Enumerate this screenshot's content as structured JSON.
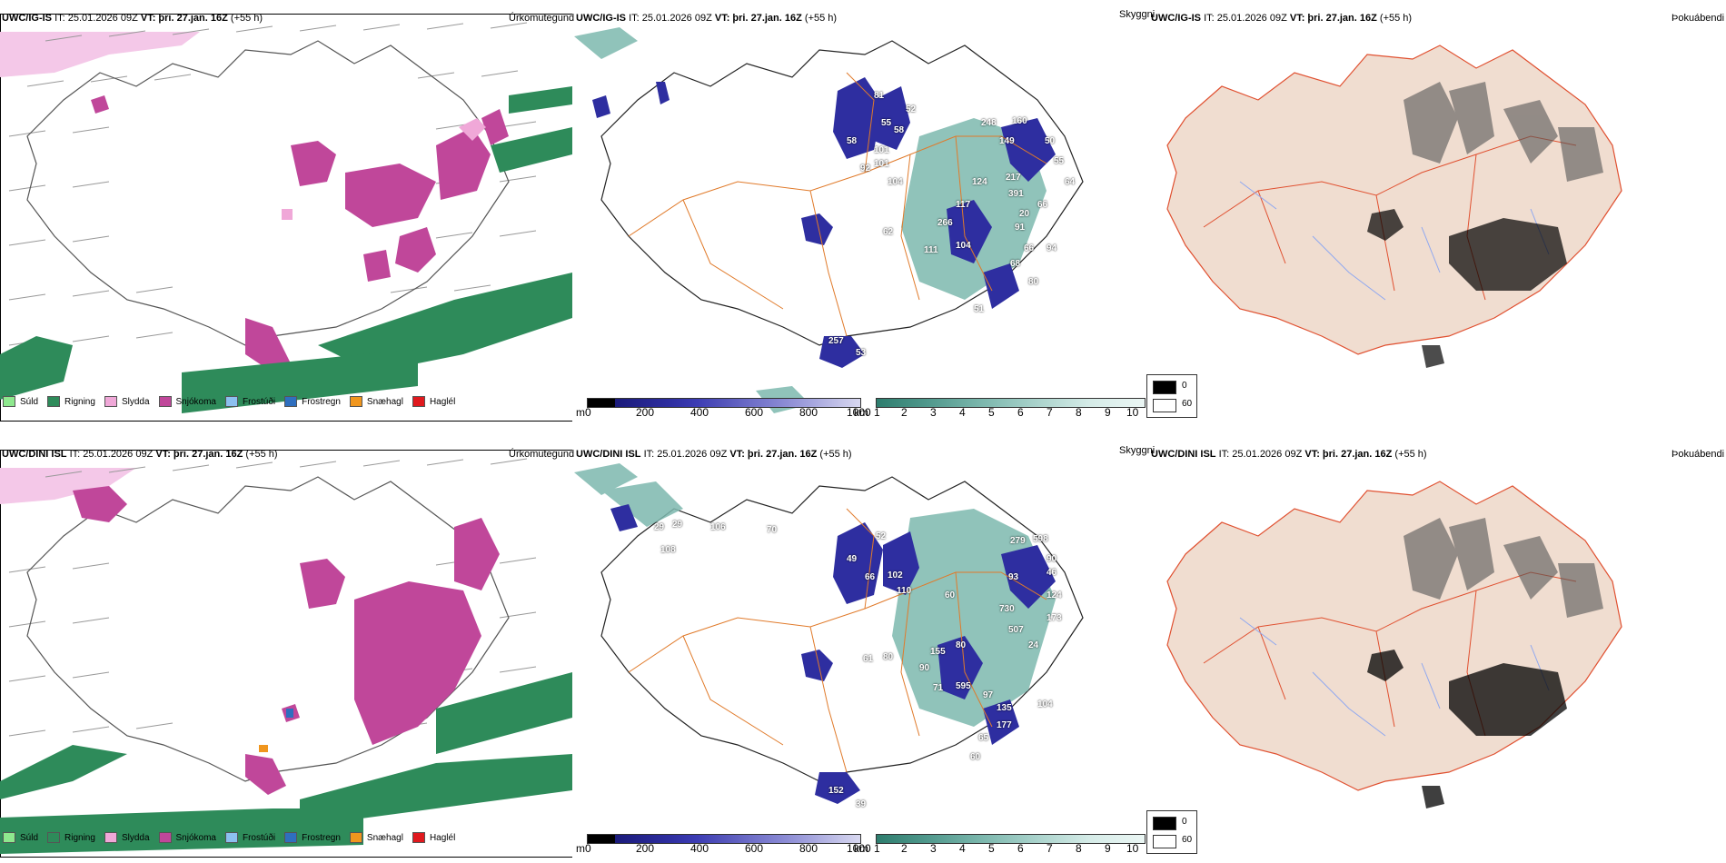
{
  "rows": [
    {
      "model": "UWC/IG-IS",
      "precip_title_rest": "IT: 25.01.2026 09Z",
      "vt": "VT: þri. 27.jan. 16Z",
      "lead": "(+55 h)",
      "precip_type_label": "Úrkomutegund",
      "snow_title_rest": "IT: 25.01.2026 09Z",
      "snow_vt": "VT: þri. 27.jan. 16Z",
      "snow_lead": "(+55 h)",
      "vis_label": "Skyggni",
      "fog_title_rest": "IT: 25.01.2026 09Z",
      "fog_vt": "VT: þri. 27.jan. 16Z",
      "fog_lead": "(+55 h)",
      "fog_label": "Þokuábendi",
      "snow_numbers": [
        "81",
        "52",
        "58",
        "55",
        "58",
        "101",
        "92",
        "104",
        "101",
        "248",
        "160",
        "149",
        "50",
        "55",
        "64",
        "117",
        "124",
        "217",
        "391",
        "66",
        "20",
        "266",
        "62",
        "111",
        "104",
        "91",
        "66",
        "94",
        "68",
        "80",
        "51",
        "257",
        "53"
      ]
    },
    {
      "model": "UWC/DINI ISL",
      "precip_title_rest": "IT: 25.01.2026 09Z",
      "vt": "VT: þri. 27.jan. 16Z",
      "lead": "(+55 h)",
      "precip_type_label": "Úrkomutegund",
      "snow_title_rest": "IT: 25.01.2026 09Z",
      "snow_vt": "VT: þri. 27.jan. 16Z",
      "snow_lead": "(+55 h)",
      "vis_label": "Skyggni",
      "fog_title_rest": "IT: 25.01.2026 09Z",
      "fog_vt": "VT: þri. 27.jan. 16Z",
      "fog_lead": "(+55 h)",
      "fog_label": "Þokuábendi",
      "snow_numbers": [
        "29",
        "29",
        "106",
        "108",
        "70",
        "52",
        "49",
        "66",
        "102",
        "110",
        "279",
        "598",
        "90",
        "93",
        "46",
        "124",
        "60",
        "730",
        "173",
        "507",
        "24",
        "155",
        "80",
        "61",
        "80",
        "90",
        "71",
        "595",
        "97",
        "135",
        "104",
        "177",
        "65",
        "60",
        "152",
        "39"
      ]
    }
  ],
  "precip_legend": [
    {
      "label": "Súld",
      "color": "#8ee88e"
    },
    {
      "label": "Rigning",
      "color": "#2e8b5a"
    },
    {
      "label": "Slydda",
      "color": "#f0a8d8"
    },
    {
      "label": "Snjókoma",
      "color": "#c0479a"
    },
    {
      "label": "Frostúði",
      "color": "#8cc0f0"
    },
    {
      "label": "Frostregn",
      "color": "#2f6fbf"
    },
    {
      "label": "Snæhagl",
      "color": "#f0961e"
    },
    {
      "label": "Haglél",
      "color": "#e0191e"
    }
  ],
  "snow_bar": {
    "unit": "m",
    "ticks": [
      "0",
      "200",
      "400",
      "600",
      "800",
      "1000"
    ],
    "colors": [
      "#000000",
      "#1a1a7a",
      "#2e2ea0",
      "#3c3cb4",
      "#5555bb",
      "#6e6ec8",
      "#8585d2",
      "#9f9fdc",
      "#bcbce6",
      "#d8d8f0"
    ]
  },
  "vis_bar": {
    "unit": "km",
    "ticks": [
      "1",
      "2",
      "3",
      "4",
      "5",
      "6",
      "7",
      "8",
      "9",
      "10"
    ],
    "colors": [
      "#2e7d6e",
      "#3f8c7e",
      "#529a8e",
      "#66a99e",
      "#7db8ae",
      "#94c6be",
      "#aad3cc",
      "#c0e0da",
      "#d6ece8",
      "#ebf6f4"
    ]
  },
  "fog_key": {
    "high": "0",
    "low": "60"
  }
}
